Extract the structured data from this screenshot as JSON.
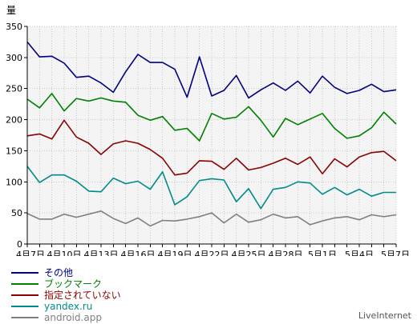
{
  "chart_data": {
    "type": "line",
    "ylabel": "量",
    "ylim": [
      0,
      350
    ],
    "yticks": [
      0,
      50,
      100,
      150,
      200,
      250,
      300,
      350
    ],
    "grid": true,
    "x_tick_labels": [
      "4月7日",
      "4月10日",
      "4月13日",
      "4月16日",
      "4月19日",
      "4月22日",
      "4月25日",
      "4月28日",
      "5月1日",
      "5月4日",
      "5月7日"
    ],
    "x": [
      "4月7日",
      "4月8日",
      "4月9日",
      "4月10日",
      "4月11日",
      "4月12日",
      "4月13日",
      "4月14日",
      "4月15日",
      "4月16日",
      "4月17日",
      "4月18日",
      "4月19日",
      "4月20日",
      "4月21日",
      "4月22日",
      "4月23日",
      "4月24日",
      "4月25日",
      "4月26日",
      "4月27日",
      "4月28日",
      "4月29日",
      "4月30日",
      "5月1日",
      "5月2日",
      "5月3日",
      "5月4日",
      "5月5日",
      "5月6日",
      "5月7日"
    ],
    "series": [
      {
        "name": "その他",
        "color": "#000080",
        "values": [
          325,
          301,
          302,
          291,
          268,
          270,
          259,
          244,
          277,
          305,
          292,
          292,
          281,
          236,
          301,
          238,
          247,
          271,
          235,
          248,
          259,
          247,
          262,
          243,
          270,
          252,
          242,
          247,
          257,
          245,
          248
        ]
      },
      {
        "name": "ブックマーク",
        "color": "#008000",
        "values": [
          233,
          219,
          242,
          214,
          234,
          230,
          235,
          230,
          228,
          207,
          199,
          205,
          183,
          186,
          166,
          210,
          201,
          204,
          221,
          199,
          172,
          202,
          192,
          201,
          210,
          186,
          170,
          174,
          187,
          212,
          193
        ]
      },
      {
        "name": "指定されていない",
        "color": "#8b0000",
        "values": [
          174,
          177,
          169,
          199,
          172,
          162,
          144,
          161,
          166,
          162,
          152,
          138,
          111,
          114,
          134,
          133,
          120,
          138,
          119,
          123,
          130,
          138,
          128,
          140,
          113,
          137,
          124,
          140,
          147,
          149,
          134
        ]
      },
      {
        "name": "yandex.ru",
        "color": "#008b8b",
        "values": [
          125,
          99,
          111,
          111,
          101,
          85,
          84,
          106,
          97,
          101,
          88,
          116,
          63,
          76,
          102,
          105,
          103,
          68,
          89,
          57,
          88,
          91,
          100,
          98,
          80,
          91,
          79,
          88,
          77,
          83,
          83
        ]
      },
      {
        "name": "android.app",
        "color": "#808080",
        "values": [
          49,
          40,
          40,
          48,
          43,
          48,
          53,
          41,
          33,
          42,
          29,
          38,
          37,
          40,
          44,
          50,
          34,
          48,
          35,
          39,
          48,
          42,
          44,
          31,
          37,
          42,
          44,
          39,
          47,
          44,
          47
        ]
      }
    ]
  },
  "branding": "LiveInternet"
}
